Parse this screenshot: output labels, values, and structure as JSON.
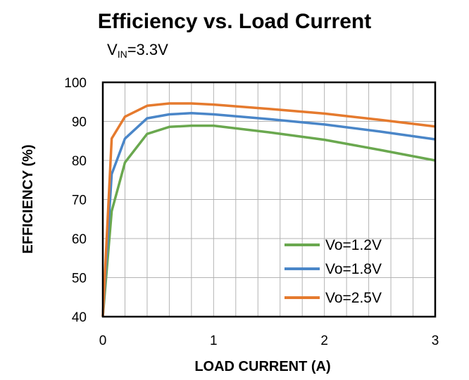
{
  "chart_data": {
    "type": "line",
    "title": "Efficiency vs. Load Current",
    "subtitle": {
      "base": "V",
      "sub": "IN",
      "rest": "=3.3V"
    },
    "xlabel": "LOAD CURRENT (A)",
    "ylabel": "EFFICIENCY (%)",
    "xlim": [
      0,
      3
    ],
    "ylim": [
      40,
      100
    ],
    "xticks": [
      0,
      1,
      2,
      3
    ],
    "yticks": [
      40,
      50,
      60,
      70,
      80,
      90,
      100
    ],
    "x_minor_gridlines": [
      0.2,
      0.4,
      0.6,
      0.8,
      1.2,
      1.4,
      1.6,
      1.8,
      2.2,
      2.4,
      2.6,
      2.8
    ],
    "grid": true,
    "legend_position": "bottom-right",
    "series": [
      {
        "name": "Vo=1.2V",
        "color": "#6aa84f",
        "x": [
          0,
          0.08,
          0.2,
          0.4,
          0.6,
          0.8,
          1.0,
          1.5,
          2.0,
          2.5,
          3.0
        ],
        "y": [
          40,
          67,
          79.5,
          86.8,
          88.6,
          88.9,
          88.9,
          87.2,
          85.3,
          82.7,
          80.0
        ]
      },
      {
        "name": "Vo=1.8V",
        "color": "#4a86c8",
        "x": [
          0,
          0.08,
          0.2,
          0.4,
          0.6,
          0.8,
          1.0,
          1.5,
          2.0,
          2.5,
          3.0
        ],
        "y": [
          40,
          76.5,
          85.6,
          90.8,
          91.8,
          92.1,
          91.8,
          90.6,
          89.2,
          87.4,
          85.4
        ]
      },
      {
        "name": "Vo=2.5V",
        "color": "#e57a2e",
        "x": [
          0,
          0.08,
          0.2,
          0.4,
          0.6,
          0.8,
          1.0,
          1.5,
          2.0,
          2.5,
          3.0
        ],
        "y": [
          40,
          85.6,
          91.2,
          94.0,
          94.6,
          94.6,
          94.3,
          93.2,
          92.0,
          90.4,
          88.7
        ]
      }
    ]
  }
}
